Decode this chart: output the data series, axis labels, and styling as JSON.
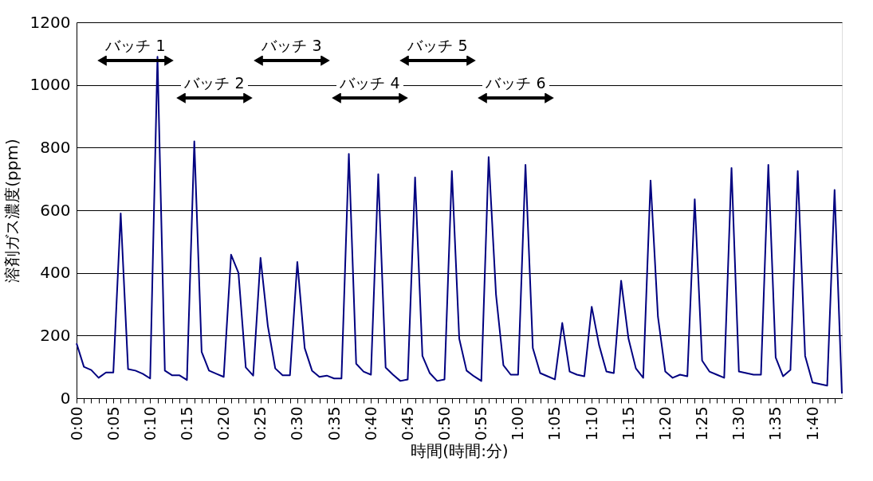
{
  "chart_data": {
    "type": "line",
    "xlabel": "時間(時間:分)",
    "ylabel": "溶剤ガス濃度(ppm)",
    "x": [
      0,
      0.0167,
      0.0333,
      0.05,
      0.0667,
      0.0833,
      0.1,
      0.1167,
      0.1333,
      0.15,
      0.1667,
      0.1833,
      0.2,
      0.2167,
      0.2333,
      0.25,
      0.2667,
      0.2833,
      0.3,
      0.3167,
      0.3333,
      0.35,
      0.3667,
      0.3833,
      0.4,
      0.4167,
      0.4333,
      0.45,
      0.4667,
      0.4833,
      0.5,
      0.5167,
      0.5333,
      0.55,
      0.5667,
      0.5833,
      0.6,
      0.6167,
      0.6333,
      0.65,
      0.6667,
      0.6833,
      0.7,
      0.7167,
      0.7333,
      0.75,
      0.7667,
      0.7833,
      0.8,
      0.8167,
      0.8333,
      0.85,
      0.8667,
      0.8833,
      0.9,
      0.9167,
      0.9333,
      0.95,
      0.9667,
      0.9833,
      1,
      1.0167,
      1.0333,
      1.05,
      1.0667,
      1.0833,
      1.1,
      1.1167,
      1.1333,
      1.15,
      1.1667,
      1.1833,
      1.2,
      1.2167,
      1.2333,
      1.25,
      1.2667,
      1.2833,
      1.3,
      1.3167,
      1.3333,
      1.35,
      1.3667,
      1.3833,
      1.4,
      1.4167,
      1.4333,
      1.45,
      1.4667,
      1.4833,
      1.5,
      1.5167,
      1.5333,
      1.55,
      1.5667,
      1.5833,
      1.6,
      1.6167,
      1.6333,
      1.65,
      1.6667,
      1.6833,
      1.7,
      1.7167,
      1.7333
    ],
    "series": [
      {
        "color": "#000080",
        "values": [
          175,
          100,
          90,
          65,
          82,
          82,
          590,
          93,
          88,
          78,
          63,
          1090,
          88,
          73,
          73,
          58,
          820,
          148,
          88,
          78,
          68,
          458,
          400,
          98,
          72,
          448,
          230,
          95,
          73,
          73,
          435,
          160,
          88,
          68,
          72,
          63,
          63,
          780,
          110,
          85,
          75,
          715,
          98,
          75,
          55,
          60,
          705,
          135,
          80,
          55,
          60,
          725,
          190,
          88,
          70,
          55,
          770,
          330,
          105,
          75,
          75,
          745,
          160,
          80,
          70,
          60,
          240,
          85,
          75,
          70,
          292,
          170,
          85,
          80,
          375,
          190,
          95,
          65,
          695,
          260,
          85,
          65,
          75,
          70,
          635,
          120,
          85,
          75,
          65,
          735,
          85,
          80,
          75,
          75,
          745,
          130,
          70,
          90,
          725,
          135,
          50,
          45,
          40,
          665,
          15
        ]
      }
    ],
    "xlim": [
      0,
      1.7333
    ],
    "ylim": [
      0,
      1200
    ],
    "yticks": [
      0,
      200,
      400,
      600,
      800,
      1000,
      1200
    ],
    "xticks": [
      {
        "value": 0,
        "label": "0:00"
      },
      {
        "value": 0.0167,
        "label": null
      },
      {
        "value": 0.0333,
        "label": null
      },
      {
        "value": 0.05,
        "label": null
      },
      {
        "value": 0.0667,
        "label": null
      },
      {
        "value": 0.0833,
        "label": "0:05"
      },
      {
        "value": 0.1,
        "label": null
      },
      {
        "value": 0.1167,
        "label": null
      },
      {
        "value": 0.1333,
        "label": null
      },
      {
        "value": 0.15,
        "label": null
      },
      {
        "value": 0.1667,
        "label": "0:10"
      },
      {
        "value": 0.1833,
        "label": null
      },
      {
        "value": 0.2,
        "label": null
      },
      {
        "value": 0.2167,
        "label": null
      },
      {
        "value": 0.2333,
        "label": null
      },
      {
        "value": 0.25,
        "label": "0:15"
      },
      {
        "value": 0.2667,
        "label": null
      },
      {
        "value": 0.2833,
        "label": null
      },
      {
        "value": 0.3,
        "label": null
      },
      {
        "value": 0.3167,
        "label": null
      },
      {
        "value": 0.3333,
        "label": "0:20"
      },
      {
        "value": 0.35,
        "label": null
      },
      {
        "value": 0.3667,
        "label": null
      },
      {
        "value": 0.3833,
        "label": null
      },
      {
        "value": 0.4,
        "label": null
      },
      {
        "value": 0.4167,
        "label": "0:25"
      },
      {
        "value": 0.4333,
        "label": null
      },
      {
        "value": 0.45,
        "label": null
      },
      {
        "value": 0.4667,
        "label": null
      },
      {
        "value": 0.4833,
        "label": null
      },
      {
        "value": 0.5,
        "label": "0:30"
      },
      {
        "value": 0.5167,
        "label": null
      },
      {
        "value": 0.5333,
        "label": null
      },
      {
        "value": 0.55,
        "label": null
      },
      {
        "value": 0.5667,
        "label": null
      },
      {
        "value": 0.5833,
        "label": "0:35"
      },
      {
        "value": 0.6,
        "label": null
      },
      {
        "value": 0.6167,
        "label": null
      },
      {
        "value": 0.6333,
        "label": null
      },
      {
        "value": 0.65,
        "label": null
      },
      {
        "value": 0.6667,
        "label": "0:40"
      },
      {
        "value": 0.6833,
        "label": null
      },
      {
        "value": 0.7,
        "label": null
      },
      {
        "value": 0.7167,
        "label": null
      },
      {
        "value": 0.7333,
        "label": null
      },
      {
        "value": 0.75,
        "label": "0:45"
      },
      {
        "value": 0.7667,
        "label": null
      },
      {
        "value": 0.7833,
        "label": null
      },
      {
        "value": 0.8,
        "label": null
      },
      {
        "value": 0.8167,
        "label": null
      },
      {
        "value": 0.8333,
        "label": "0:50"
      },
      {
        "value": 0.85,
        "label": null
      },
      {
        "value": 0.8667,
        "label": null
      },
      {
        "value": 0.8833,
        "label": null
      },
      {
        "value": 0.9,
        "label": null
      },
      {
        "value": 0.9167,
        "label": "0:55"
      },
      {
        "value": 0.9333,
        "label": null
      },
      {
        "value": 0.95,
        "label": null
      },
      {
        "value": 0.9667,
        "label": null
      },
      {
        "value": 0.9833,
        "label": null
      },
      {
        "value": 1,
        "label": "1:00"
      },
      {
        "value": 1.0167,
        "label": null
      },
      {
        "value": 1.0333,
        "label": null
      },
      {
        "value": 1.05,
        "label": null
      },
      {
        "value": 1.0667,
        "label": null
      },
      {
        "value": 1.0833,
        "label": "1:05"
      },
      {
        "value": 1.1,
        "label": null
      },
      {
        "value": 1.1167,
        "label": null
      },
      {
        "value": 1.1333,
        "label": null
      },
      {
        "value": 1.15,
        "label": null
      },
      {
        "value": 1.1667,
        "label": "1:10"
      },
      {
        "value": 1.1833,
        "label": null
      },
      {
        "value": 1.2,
        "label": null
      },
      {
        "value": 1.2167,
        "label": null
      },
      {
        "value": 1.2333,
        "label": null
      },
      {
        "value": 1.25,
        "label": "1:15"
      },
      {
        "value": 1.2667,
        "label": null
      },
      {
        "value": 1.2833,
        "label": null
      },
      {
        "value": 1.3,
        "label": null
      },
      {
        "value": 1.3167,
        "label": null
      },
      {
        "value": 1.3333,
        "label": "1:20"
      },
      {
        "value": 1.35,
        "label": null
      },
      {
        "value": 1.3667,
        "label": null
      },
      {
        "value": 1.3833,
        "label": null
      },
      {
        "value": 1.4,
        "label": null
      },
      {
        "value": 1.4167,
        "label": "1:25"
      },
      {
        "value": 1.4333,
        "label": null
      },
      {
        "value": 1.45,
        "label": null
      },
      {
        "value": 1.4667,
        "label": null
      },
      {
        "value": 1.4833,
        "label": null
      },
      {
        "value": 1.5,
        "label": "1:30"
      },
      {
        "value": 1.5167,
        "label": null
      },
      {
        "value": 1.5333,
        "label": null
      },
      {
        "value": 1.55,
        "label": null
      },
      {
        "value": 1.5667,
        "label": null
      },
      {
        "value": 1.5833,
        "label": "1:35"
      },
      {
        "value": 1.6,
        "label": null
      },
      {
        "value": 1.6167,
        "label": null
      },
      {
        "value": 1.6333,
        "label": null
      },
      {
        "value": 1.65,
        "label": null
      },
      {
        "value": 1.6667,
        "label": "1:40"
      },
      {
        "value": 1.6833,
        "label": null
      },
      {
        "value": 1.7,
        "label": null
      },
      {
        "value": 1.7167,
        "label": null
      }
    ],
    "grid": "y",
    "marker": "none",
    "line_style": "solid",
    "annotations": [
      "バッチ 1",
      "バッチ 2",
      "バッチ 3",
      "バッチ 4",
      "バッチ 5",
      "バッチ 6"
    ]
  }
}
